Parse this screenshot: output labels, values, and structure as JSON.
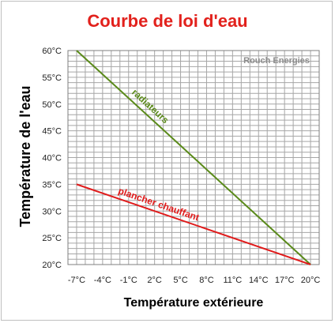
{
  "chart_data": {
    "type": "line",
    "title": "Courbe de loi d'eau",
    "xlabel": "Température extérieure",
    "ylabel": "Température de l'eau",
    "watermark": "Rouch Energies",
    "xlim": [
      -8,
      21
    ],
    "ylim": [
      20,
      60
    ],
    "x_ticks": [
      -7,
      -4,
      -1,
      2,
      5,
      8,
      11,
      14,
      17,
      20
    ],
    "x_tick_labels": [
      "-7°C",
      "-4°C",
      "-1°C",
      "2°C",
      "5°C",
      "8°C",
      "11°C",
      "14°C",
      "17°C",
      "20°C"
    ],
    "y_ticks": [
      20,
      25,
      30,
      35,
      40,
      45,
      50,
      55,
      60
    ],
    "y_tick_labels": [
      "20°C",
      "25°C",
      "30°C",
      "35°C",
      "40°C",
      "45°C",
      "50°C",
      "55°C",
      "60°C"
    ],
    "grid": true,
    "series": [
      {
        "name": "radiateurs",
        "color": "#5a8a1a",
        "x": [
          -7,
          20
        ],
        "y": [
          60,
          20
        ]
      },
      {
        "name": "plancher chauffant",
        "color": "#e01b1b",
        "x": [
          -7,
          20
        ],
        "y": [
          35,
          20
        ]
      }
    ]
  }
}
